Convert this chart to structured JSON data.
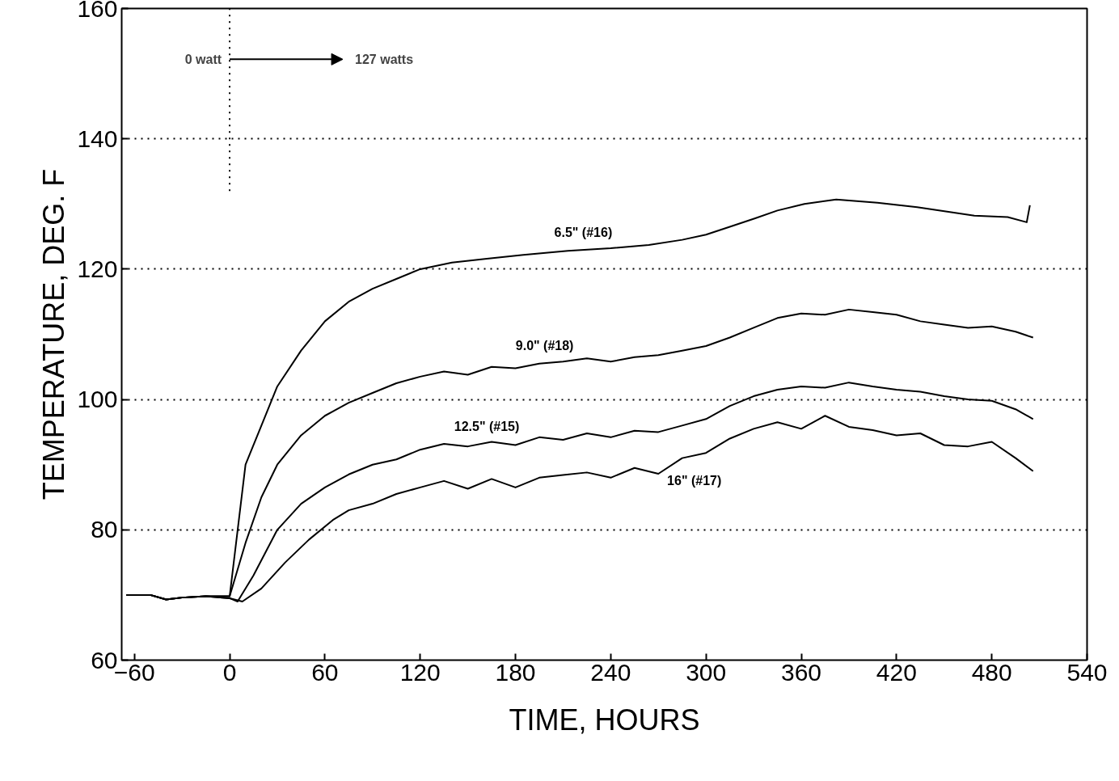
{
  "chart_data": {
    "type": "line",
    "xlabel": "TIME, HOURS",
    "ylabel": "TEMPERATURE, DEG. F",
    "xlim": [
      -68,
      540
    ],
    "ylim": [
      60,
      160
    ],
    "xticks": [
      -60,
      0,
      60,
      120,
      180,
      240,
      300,
      360,
      420,
      480,
      540
    ],
    "yticks": [
      60,
      80,
      100,
      120,
      140,
      160
    ],
    "grid": "y",
    "marker": "none",
    "line_style": "solid",
    "ref_lines": [
      {
        "axis": "x",
        "value": 0,
        "label": null,
        "line_style": "dotted"
      }
    ],
    "annotations": [
      "0 watt",
      "127 watts"
    ],
    "series": [
      {
        "name": "6.5\"  (#16)",
        "color": "#000000",
        "x": [
          -65,
          -50,
          -40,
          -30,
          -15,
          0,
          10,
          20,
          30,
          45,
          60,
          75,
          90,
          105,
          120,
          140,
          162,
          185,
          213,
          240,
          264,
          285,
          300,
          315,
          331,
          345,
          362,
          382,
          408,
          433,
          469,
          490,
          502,
          504
        ],
        "values": [
          70,
          70,
          69.3,
          69.6,
          69.8,
          69.8,
          90,
          96,
          102,
          107.5,
          112,
          115,
          117,
          118.5,
          120,
          121,
          121.6,
          122.2,
          122.8,
          123.2,
          123.7,
          124.5,
          125.3,
          126.5,
          127.8,
          129,
          130,
          130.7,
          130.2,
          129.5,
          128.2,
          128,
          127.2,
          129.8
        ]
      },
      {
        "name": "9.0\"  (#18)",
        "color": "#000000",
        "x": [
          -65,
          -50,
          -40,
          -30,
          -15,
          0,
          10,
          20,
          30,
          45,
          60,
          75,
          90,
          105,
          120,
          135,
          150,
          165,
          180,
          195,
          210,
          225,
          240,
          255,
          270,
          285,
          300,
          315,
          330,
          345,
          360,
          375,
          390,
          405,
          420,
          435,
          450,
          465,
          480,
          495,
          506
        ],
        "values": [
          70,
          70,
          69.3,
          69.6,
          69.8,
          69.8,
          78,
          85,
          90,
          94.5,
          97.5,
          99.5,
          101,
          102.5,
          103.5,
          104.3,
          103.8,
          105,
          104.8,
          105.5,
          105.8,
          106.3,
          105.8,
          106.5,
          106.8,
          107.5,
          108.2,
          109.5,
          111,
          112.5,
          113.2,
          113,
          113.8,
          113.4,
          113,
          112,
          111.5,
          111,
          111.2,
          110.4,
          109.5
        ]
      },
      {
        "name": "12.5\"  (#15)",
        "color": "#000000",
        "x": [
          -65,
          -50,
          -40,
          -30,
          -15,
          0,
          5,
          15,
          30,
          45,
          60,
          75,
          90,
          105,
          120,
          135,
          150,
          165,
          180,
          195,
          210,
          225,
          240,
          255,
          270,
          285,
          300,
          315,
          330,
          345,
          360,
          375,
          390,
          405,
          420,
          435,
          450,
          465,
          480,
          495,
          506
        ],
        "values": [
          70,
          70,
          69.3,
          69.6,
          69.8,
          69.5,
          69,
          73,
          80,
          84,
          86.5,
          88.5,
          90,
          90.8,
          92.3,
          93.2,
          92.8,
          93.5,
          93,
          94.2,
          93.8,
          94.8,
          94.2,
          95.2,
          95,
          96,
          97,
          99,
          100.5,
          101.5,
          102,
          101.8,
          102.6,
          102,
          101.5,
          101.2,
          100.5,
          100,
          99.8,
          98.5,
          97
        ]
      },
      {
        "name": "16\"  (#17)",
        "color": "#000000",
        "x": [
          -65,
          -50,
          -40,
          -30,
          -15,
          0,
          8,
          20,
          35,
          50,
          65,
          75,
          90,
          105,
          120,
          135,
          150,
          165,
          180,
          195,
          210,
          225,
          240,
          255,
          270,
          285,
          300,
          315,
          330,
          345,
          360,
          375,
          390,
          405,
          420,
          435,
          450,
          465,
          480,
          495,
          506
        ],
        "values": [
          70,
          70,
          69.3,
          69.6,
          69.8,
          69.5,
          69,
          71,
          75,
          78.5,
          81.5,
          83,
          84,
          85.5,
          86.5,
          87.5,
          86.3,
          87.8,
          86.5,
          88,
          88.4,
          88.8,
          88,
          89.5,
          88.6,
          91,
          91.8,
          94,
          95.5,
          96.5,
          95.5,
          97.5,
          95.8,
          95.3,
          94.5,
          94.8,
          93,
          92.8,
          93.5,
          91,
          89
        ]
      }
    ]
  }
}
